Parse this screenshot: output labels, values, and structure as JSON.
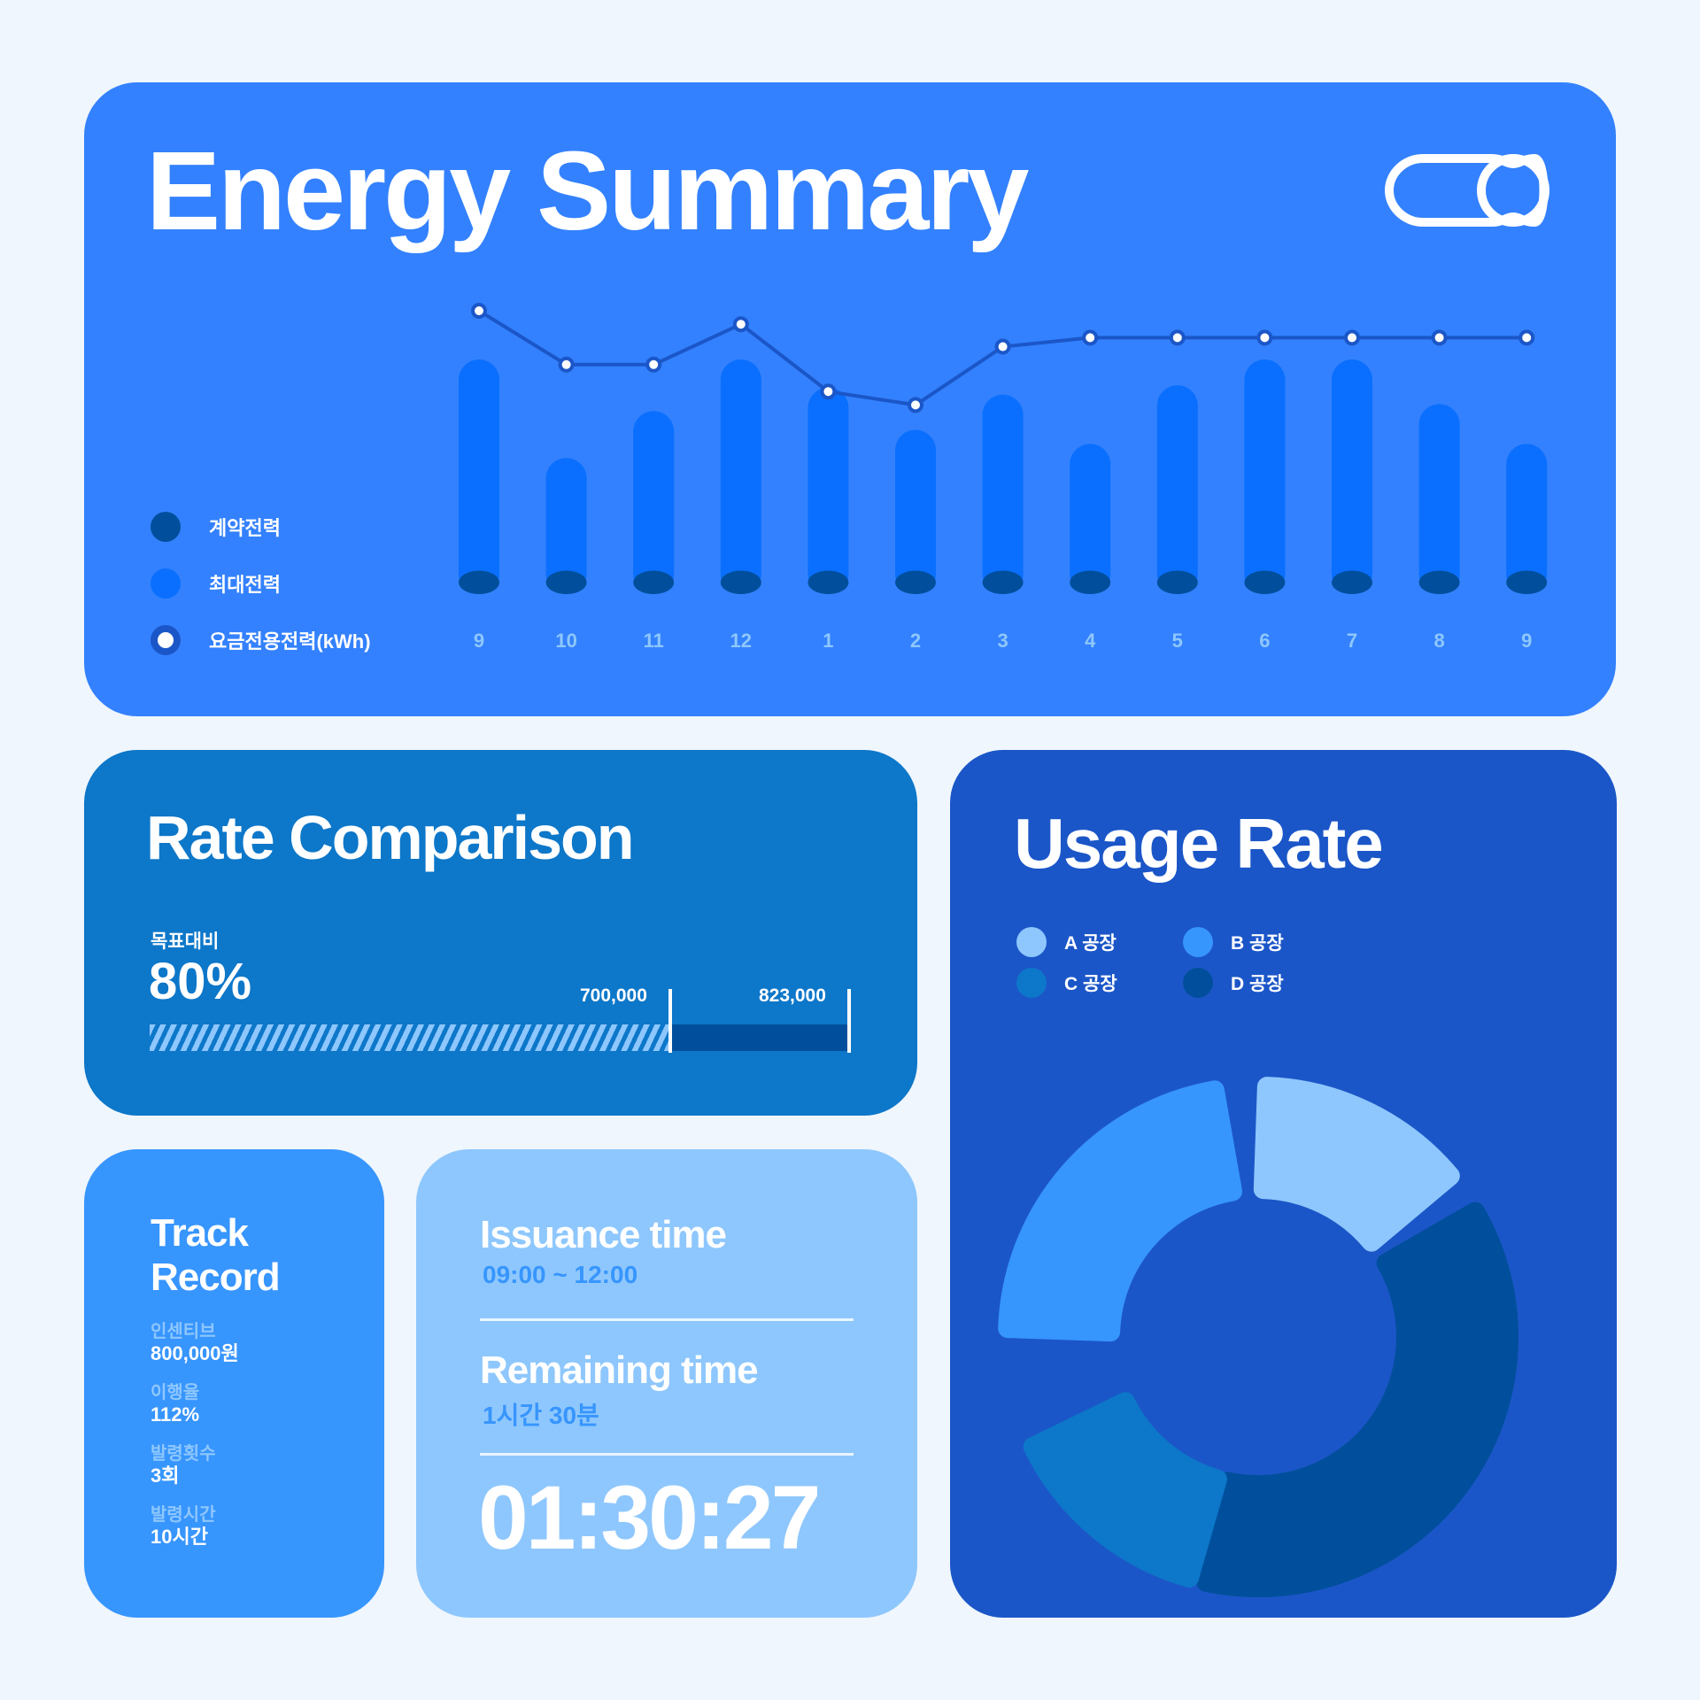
{
  "energy_summary": {
    "title": "Energy Summary",
    "legend": [
      {
        "label": "계약전력",
        "color": "#014f9c"
      },
      {
        "label": "최대전력",
        "color": "#0a6ffe"
      },
      {
        "label": "요금전용전력(kWh)",
        "color": "#ffffff"
      }
    ]
  },
  "chart_data": [
    {
      "type": "bar",
      "categories": [
        "9",
        "10",
        "11",
        "12",
        "1",
        "2",
        "3",
        "4",
        "5",
        "6",
        "7",
        "8",
        "9"
      ],
      "series": [
        {
          "name": "최대전력",
          "values": [
            100,
            58,
            78,
            100,
            88,
            70,
            85,
            64,
            89,
            100,
            100,
            81,
            64
          ]
        },
        {
          "name": "계약전력",
          "values": [
            10,
            10,
            10,
            10,
            10,
            10,
            10,
            10,
            10,
            10,
            10,
            10,
            10
          ]
        },
        {
          "name": "요금전용전력(kWh)",
          "values": [
            100,
            88,
            88,
            97,
            82,
            79,
            92,
            94,
            94,
            94,
            94,
            94,
            94
          ]
        }
      ],
      "ylim": [
        0,
        100
      ],
      "colors": {
        "bar": "#0a6ffe",
        "base": "#014f9c",
        "line": "#1b56c8",
        "point": "#ffffff"
      }
    },
    {
      "type": "pie",
      "labels": [
        "A 공장",
        "B 공장",
        "C 공장",
        "D 공장"
      ],
      "values": [
        13,
        21,
        13,
        35
      ],
      "colors": [
        "#8ec7fd",
        "#3795fe",
        "#0d77c9",
        "#014f9c"
      ]
    }
  ],
  "rate_comparison": {
    "title": "Rate Comparison",
    "label": "목표대비",
    "percent": "80%",
    "target_value": "700,000",
    "max_value": "823,000",
    "fill_fraction": 0.745
  },
  "usage_rate": {
    "title": "Usage Rate",
    "legend": [
      {
        "label": "A 공장",
        "color": "#8ec7fd"
      },
      {
        "label": "B 공장",
        "color": "#3795fe"
      },
      {
        "label": "C 공장",
        "color": "#0d77c9"
      },
      {
        "label": "D 공장",
        "color": "#014f9c"
      }
    ]
  },
  "track_record": {
    "title_line1": "Track",
    "title_line2": "Record",
    "stats": [
      {
        "label": "인센티브",
        "value": "800,000원"
      },
      {
        "label": "이행율",
        "value": "112%"
      },
      {
        "label": "발령횟수",
        "value": "3회"
      },
      {
        "label": "발령시간",
        "value": "10시간"
      }
    ]
  },
  "times": {
    "issuance_label": "Issuance time",
    "issuance_value": "09:00 ~ 12:00",
    "remaining_label": "Remaining time",
    "remaining_value": "1시간 30분",
    "countdown": "01:30:27"
  }
}
